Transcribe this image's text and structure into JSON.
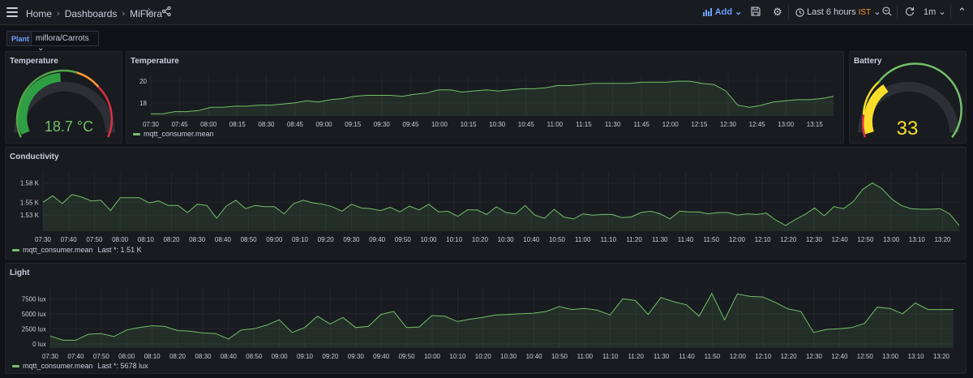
{
  "header": {
    "breadcrumbs": [
      "Home",
      "Dashboards",
      "MiFlora"
    ],
    "add_label": "Add",
    "time_range": "Last 6 hours",
    "timezone": "IST",
    "refresh_interval": "1m"
  },
  "variables": {
    "label": "Plant",
    "value": "miflora/Carrots"
  },
  "panels": {
    "temp_gauge": {
      "title": "Temperature",
      "value_text": "18.7 °C",
      "value": 18.7,
      "value_color": "#73bf69"
    },
    "temp_chart": {
      "title": "Temperature",
      "legend": "mqtt_consumer.mean"
    },
    "battery": {
      "title": "Battery",
      "value_text": "33",
      "value": 33,
      "max": 100,
      "value_color": "#fade2a"
    },
    "conductivity": {
      "title": "Conductivity",
      "legend": "mqtt_consumer.mean",
      "legend_extra": "Last *: 1.51 K"
    },
    "light": {
      "title": "Light",
      "legend": "mqtt_consumer.mean",
      "legend_extra": "Last *: 5678 lux"
    }
  },
  "chart_data": [
    {
      "type": "area",
      "name": "temperature",
      "x_ticks": [
        "07:30",
        "07:45",
        "08:00",
        "08:15",
        "08:30",
        "08:45",
        "09:00",
        "09:15",
        "09:30",
        "09:45",
        "10:00",
        "10:15",
        "10:30",
        "10:45",
        "11:00",
        "11:15",
        "11:30",
        "11:45",
        "12:00",
        "12:15",
        "12:30",
        "12:45",
        "13:00",
        "13:15"
      ],
      "y_ticks": [
        "18",
        "20"
      ],
      "ylim": [
        16.8,
        20.6
      ],
      "series": [
        {
          "name": "mqtt_consumer.mean",
          "color": "#73bf69",
          "values": [
            17.0,
            17.0,
            17.2,
            17.2,
            17.3,
            17.6,
            17.6,
            17.7,
            17.7,
            17.8,
            17.8,
            17.9,
            18.0,
            18.2,
            18.1,
            18.3,
            18.4,
            18.6,
            18.7,
            18.7,
            18.7,
            18.6,
            18.8,
            18.9,
            19.2,
            19.2,
            19.0,
            19.1,
            19.2,
            19.1,
            19.2,
            19.3,
            19.3,
            19.4,
            19.6,
            19.6,
            19.7,
            19.8,
            19.8,
            19.8,
            19.8,
            19.9,
            19.9,
            19.9,
            20.0,
            20.0,
            19.8,
            19.7,
            19.1,
            17.8,
            17.6,
            17.8,
            18.1,
            18.2,
            18.3,
            18.3,
            18.4,
            18.6
          ]
        }
      ]
    },
    {
      "type": "area",
      "name": "conductivity",
      "x_ticks": [
        "07:30",
        "07:40",
        "07:50",
        "08:00",
        "08:10",
        "08:20",
        "08:30",
        "08:40",
        "08:50",
        "09:00",
        "09:10",
        "09:20",
        "09:30",
        "09:40",
        "09:50",
        "10:00",
        "10:10",
        "10:20",
        "10:30",
        "10:40",
        "10:50",
        "11:00",
        "11:10",
        "11:20",
        "11:30",
        "11:40",
        "11:50",
        "12:00",
        "12:10",
        "12:20",
        "12:30",
        "12:40",
        "12:50",
        "13:00",
        "13:10",
        "13:20"
      ],
      "y_ticks": [
        "1.53 K",
        "1.55 K",
        "1.58 K"
      ],
      "ylim": [
        1.505,
        1.597
      ],
      "series": [
        {
          "name": "mqtt_consumer.mean",
          "color": "#73bf69",
          "values": [
            1.55,
            1.56,
            1.548,
            1.562,
            1.558,
            1.552,
            1.553,
            1.537,
            1.557,
            1.557,
            1.557,
            1.549,
            1.552,
            1.545,
            1.545,
            1.534,
            1.547,
            1.545,
            1.525,
            1.544,
            1.553,
            1.54,
            1.545,
            1.543,
            1.543,
            1.532,
            1.548,
            1.553,
            1.549,
            1.547,
            1.543,
            1.536,
            1.547,
            1.541,
            1.54,
            1.537,
            1.542,
            1.535,
            1.544,
            1.538,
            1.547,
            1.535,
            1.536,
            1.528,
            1.538,
            1.538,
            1.531,
            1.543,
            1.534,
            1.532,
            1.545,
            1.53,
            1.525,
            1.539,
            1.527,
            1.524,
            1.532,
            1.53,
            1.531,
            1.531,
            1.526,
            1.527,
            1.534,
            1.536,
            1.532,
            1.524,
            1.536,
            1.535,
            1.535,
            1.532,
            1.534,
            1.534,
            1.53,
            1.532,
            1.531,
            1.533,
            1.522,
            1.514,
            1.523,
            1.531,
            1.541,
            1.529,
            1.543,
            1.54,
            1.551,
            1.57,
            1.58,
            1.571,
            1.555,
            1.545,
            1.54,
            1.539,
            1.539,
            1.54,
            1.532,
            1.514
          ]
        }
      ]
    },
    {
      "type": "area",
      "name": "light",
      "x_ticks": [
        "07:30",
        "07:40",
        "07:50",
        "08:00",
        "08:10",
        "08:20",
        "08:30",
        "08:40",
        "08:50",
        "09:00",
        "09:10",
        "09:20",
        "09:30",
        "09:40",
        "09:50",
        "10:00",
        "10:10",
        "10:20",
        "10:30",
        "10:40",
        "10:50",
        "11:00",
        "11:10",
        "11:20",
        "11:30",
        "11:40",
        "11:50",
        "12:00",
        "12:10",
        "12:20",
        "12:30",
        "12:40",
        "12:50",
        "13:00",
        "13:10",
        "13:20"
      ],
      "y_ticks": [
        "0 lux",
        "2500 lux",
        "5000 lux",
        "7500 lux"
      ],
      "ylim": [
        -700,
        9300
      ],
      "series": [
        {
          "name": "mqtt_consumer.mean",
          "color": "#73bf69",
          "values": [
            1300,
            600,
            600,
            1600,
            1700,
            1200,
            2300,
            2700,
            3000,
            2900,
            2200,
            2100,
            1800,
            1700,
            800,
            2300,
            2500,
            3100,
            4000,
            1900,
            2700,
            4600,
            3300,
            4400,
            2700,
            2900,
            4900,
            5400,
            2700,
            2800,
            4700,
            4600,
            3700,
            4100,
            4400,
            4800,
            4900,
            5000,
            5100,
            5400,
            6200,
            5700,
            5900,
            5600,
            4800,
            7500,
            7200,
            4900,
            7700,
            7000,
            6500,
            4600,
            8400,
            4000,
            8300,
            7900,
            7800,
            6900,
            5800,
            5400,
            1900,
            2400,
            2500,
            2700,
            3400,
            6100,
            5900,
            5000,
            6800,
            5700,
            5700,
            5700
          ]
        }
      ]
    }
  ]
}
